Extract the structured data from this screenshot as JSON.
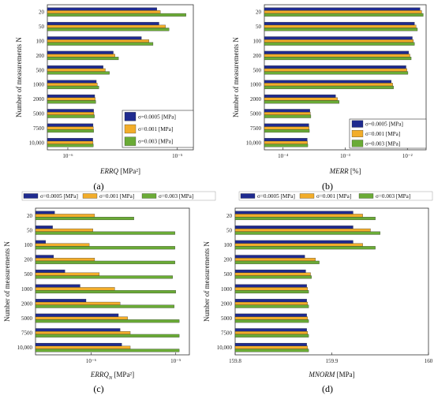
{
  "colors": {
    "s1": "#1f2b8f",
    "s2": "#f2ad2a",
    "s3": "#6aab36"
  },
  "legend_labels": [
    "σ=0.0005 [MPa]",
    "σ=0.001 [MPa]",
    "σ=0.003  [MPa]"
  ],
  "ylabel": "Number of measurements N",
  "chart_data": [
    {
      "id": "a",
      "panel_label": "(a)",
      "type": "bar",
      "orientation": "horizontal",
      "xscale": "log",
      "xlim": [
        6.5e-07,
        1.4e-05
      ],
      "xticks": [
        {
          "v": 1e-06,
          "label": "10⁻⁶"
        },
        {
          "v": 1e-05,
          "label": "10⁻⁵"
        }
      ],
      "xlabel_main": "ERRQ",
      "xlabel_unit": "[MPa²]",
      "legend_position": "bottom-right",
      "categories": [
        "20",
        "50",
        "100",
        "200",
        "500",
        "1000",
        "2000",
        "5000",
        "7500",
        "10,000"
      ],
      "series": [
        {
          "name": "σ=0.0005 [MPa]",
          "values": [
            6.5e-06,
            6.8e-06,
            4.7e-06,
            2.6e-06,
            2.1e-06,
            1.82e-06,
            1.76e-06,
            1.72e-06,
            1.7e-06,
            1.69e-06
          ]
        },
        {
          "name": "σ=0.001 [MPa]",
          "values": [
            7e-06,
            7.8e-06,
            5.5e-06,
            2.7e-06,
            2.2e-06,
            1.86e-06,
            1.78e-06,
            1.73e-06,
            1.71e-06,
            1.7e-06
          ]
        },
        {
          "name": "σ=0.003  [MPa]",
          "values": [
            1.2e-05,
            8.4e-06,
            6e-06,
            2.9e-06,
            2.4e-06,
            1.92e-06,
            1.8e-06,
            1.75e-06,
            1.72e-06,
            1.71e-06
          ]
        }
      ]
    },
    {
      "id": "b",
      "panel_label": "(b)",
      "type": "bar",
      "orientation": "horizontal",
      "xscale": "log",
      "xlim": [
        5e-05,
        0.02
      ],
      "xticks": [
        {
          "v": 0.0001,
          "label": "10⁻⁴"
        },
        {
          "v": 0.001,
          "label": "10⁻³"
        },
        {
          "v": 0.01,
          "label": "10⁻²"
        }
      ],
      "xlabel_main": "MERR",
      "xlabel_unit": "[%]",
      "legend_position": "bottom-right",
      "categories": [
        "20",
        "50",
        "100",
        "200",
        "500",
        "1000",
        "2000",
        "5000",
        "7500",
        "10,000"
      ],
      "series": [
        {
          "name": "σ=0.0005 [MPa]",
          "values": [
            0.016,
            0.013,
            0.012,
            0.0105,
            0.0095,
            0.0055,
            0.0007,
            0.00027,
            0.00026,
            0.000245
          ]
        },
        {
          "name": "σ=0.001 [MPa]",
          "values": [
            0.017,
            0.0138,
            0.0125,
            0.011,
            0.0098,
            0.0058,
            0.00075,
            0.000275,
            0.000262,
            0.000247
          ]
        },
        {
          "name": "σ=0.003  [MPa]",
          "values": [
            0.018,
            0.0145,
            0.013,
            0.0115,
            0.0102,
            0.006,
            0.0008,
            0.00028,
            0.000265,
            0.00025
          ]
        }
      ]
    },
    {
      "id": "c",
      "panel_label": "(c)",
      "type": "bar",
      "orientation": "horizontal",
      "xscale": "log",
      "xlim": [
        2.2e-07,
        1.45e-05
      ],
      "xticks": [
        {
          "v": 1e-06,
          "label": "10⁻⁶"
        },
        {
          "v": 1e-05,
          "label": "10⁻⁵"
        }
      ],
      "xlabel_main": "ERRQ",
      "xlabel_sub": "N",
      "xlabel_unit": "[MPa²]",
      "legend_position": "top",
      "categories": [
        "20",
        "50",
        "100",
        "200",
        "500",
        "1000",
        "2000",
        "5000",
        "7500",
        "10,000"
      ],
      "series": [
        {
          "name": "σ=0.0005 [MPa]",
          "values": [
            3.7e-07,
            3.5e-07,
            2.9e-07,
            3.6e-07,
            4.9e-07,
            7.4e-07,
            8.7e-07,
            2.1e-06,
            2.2e-06,
            2.3e-06
          ]
        },
        {
          "name": "σ=0.001 [MPa]",
          "values": [
            1.1e-06,
            1.05e-06,
            9.5e-07,
            1.1e-06,
            1.25e-06,
            1.9e-06,
            2.2e-06,
            2.7e-06,
            2.9e-06,
            2.9e-06
          ]
        },
        {
          "name": "σ=0.003  [MPa]",
          "values": [
            3.2e-06,
            9.8e-06,
            9.8e-06,
            9.8e-06,
            9.2e-06,
            1e-05,
            9.6e-06,
            1.1e-05,
            1.1e-05,
            1.1e-05
          ]
        }
      ]
    },
    {
      "id": "d",
      "panel_label": "(d)",
      "type": "bar",
      "orientation": "horizontal",
      "xscale": "linear",
      "xlim": [
        159.8,
        160.0
      ],
      "xticks": [
        {
          "v": 159.8,
          "label": "159.8"
        },
        {
          "v": 159.9,
          "label": "159.9"
        },
        {
          "v": 160.0,
          "label": "160"
        }
      ],
      "xlabel_main": "MNORM",
      "xlabel_unit": "[MPa]",
      "legend_position": "top",
      "categories": [
        "20",
        "50",
        "100",
        "200",
        "500",
        "1000",
        "2000",
        "5000",
        "7500",
        "10,000"
      ],
      "series": [
        {
          "name": "σ=0.0005 [MPa]",
          "values": [
            159.922,
            159.922,
            159.922,
            159.872,
            159.873,
            159.874,
            159.874,
            159.874,
            159.874,
            159.874
          ]
        },
        {
          "name": "σ=0.001 [MPa]",
          "values": [
            159.932,
            159.94,
            159.932,
            159.883,
            159.878,
            159.875,
            159.875,
            159.875,
            159.875,
            159.875
          ]
        },
        {
          "name": "σ=0.003  [MPa]",
          "values": [
            159.945,
            159.95,
            159.945,
            159.887,
            159.879,
            159.876,
            159.876,
            159.876,
            159.876,
            159.876
          ]
        }
      ]
    }
  ]
}
